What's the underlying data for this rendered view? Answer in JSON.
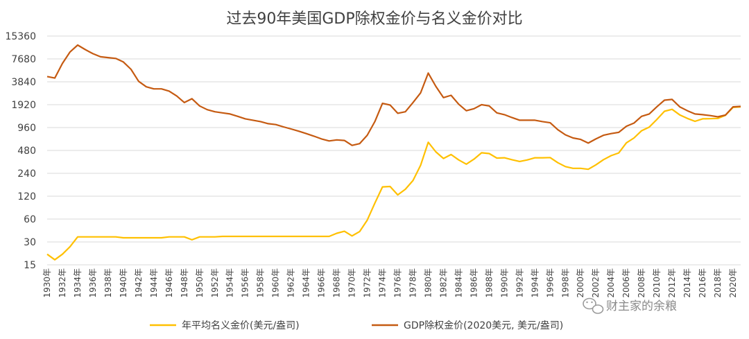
{
  "chart_data": {
    "type": "line",
    "title": "过去90年美国GDP除权金价与名义金价对比",
    "y_scale": "log2",
    "ylim": [
      15,
      15360
    ],
    "y_ticks": [
      "15",
      "30",
      "60",
      "120",
      "240",
      "480",
      "960",
      "1920",
      "3840",
      "7680",
      "15360"
    ],
    "x_ticks": [
      "1930年",
      "1932年",
      "1934年",
      "1936年",
      "1938年",
      "1940年",
      "1942年",
      "1944年",
      "1946年",
      "1948年",
      "1950年",
      "1952年",
      "1954年",
      "1956年",
      "1958年",
      "1960年",
      "1962年",
      "1964年",
      "1966年",
      "1968年",
      "1970年",
      "1972年",
      "1974年",
      "1976年",
      "1978年",
      "1980年",
      "1982年",
      "1984年",
      "1986年",
      "1988年",
      "1990年",
      "1992年",
      "1994年",
      "1996年",
      "1998年",
      "2000年",
      "2002年",
      "2004年",
      "2006年",
      "2008年",
      "2010年",
      "2012年",
      "2014年",
      "2016年",
      "2018年",
      "2020年"
    ],
    "x": [
      1930,
      1931,
      1932,
      1933,
      1934,
      1935,
      1936,
      1937,
      1938,
      1939,
      1940,
      1941,
      1942,
      1943,
      1944,
      1945,
      1946,
      1947,
      1948,
      1949,
      1950,
      1951,
      1952,
      1953,
      1954,
      1955,
      1956,
      1957,
      1958,
      1959,
      1960,
      1961,
      1962,
      1963,
      1964,
      1965,
      1966,
      1967,
      1968,
      1969,
      1970,
      1971,
      1972,
      1973,
      1974,
      1975,
      1976,
      1977,
      1978,
      1979,
      1980,
      1981,
      1982,
      1983,
      1984,
      1985,
      1986,
      1987,
      1988,
      1989,
      1990,
      1991,
      1992,
      1993,
      1994,
      1995,
      1996,
      1997,
      1998,
      1999,
      2000,
      2001,
      2002,
      2003,
      2004,
      2005,
      2006,
      2007,
      2008,
      2009,
      2010,
      2011,
      2012,
      2013,
      2014,
      2015,
      2016,
      2017,
      2018,
      2019,
      2020,
      2021
    ],
    "series": [
      {
        "name": "年平均名义金价(美元/盎司)",
        "color": "#FFC000",
        "values": [
          20.7,
          17.5,
          20.7,
          26,
          35,
          35,
          35,
          35,
          35,
          35,
          34,
          34,
          34,
          34,
          34,
          34,
          35,
          35,
          35,
          32,
          35,
          35,
          35,
          35.5,
          35.5,
          35.5,
          35.5,
          35.5,
          35.5,
          35.5,
          35.5,
          35.5,
          35.5,
          35.5,
          35.5,
          35.5,
          35.5,
          35.5,
          39,
          41.5,
          36,
          41,
          58,
          97,
          159,
          161,
          125,
          148,
          193,
          306,
          615,
          460,
          376,
          424,
          360,
          317,
          368,
          447,
          437,
          381,
          384,
          362,
          344,
          360,
          384,
          384,
          387,
          331,
          294,
          279,
          279,
          271,
          310,
          363,
          410,
          445,
          604,
          700,
          872,
          972,
          1225,
          1572,
          1669,
          1411,
          1266,
          1160,
          1251,
          1257,
          1268,
          1393,
          1770,
          1800
        ]
      },
      {
        "name": "GDP除权金价(2020美元, 美元/盎司)",
        "color": "#C55A11",
        "values": [
          4500,
          4300,
          6700,
          9500,
          11700,
          10200,
          9000,
          8200,
          8000,
          7800,
          7000,
          5600,
          3900,
          3300,
          3100,
          3100,
          2900,
          2500,
          2050,
          2300,
          1850,
          1650,
          1550,
          1500,
          1450,
          1350,
          1250,
          1200,
          1150,
          1080,
          1050,
          980,
          920,
          860,
          800,
          740,
          680,
          640,
          660,
          650,
          560,
          590,
          760,
          1150,
          2000,
          1900,
          1480,
          1550,
          2050,
          2750,
          5000,
          3350,
          2380,
          2550,
          1950,
          1600,
          1700,
          1920,
          1850,
          1500,
          1420,
          1300,
          1200,
          1200,
          1200,
          1150,
          1110,
          900,
          770,
          700,
          670,
          600,
          680,
          760,
          800,
          830,
          1000,
          1100,
          1350,
          1450,
          1800,
          2200,
          2250,
          1800,
          1600,
          1450,
          1420,
          1380,
          1330,
          1400,
          1800,
          1820
        ]
      }
    ],
    "legend_position": "bottom",
    "grid": true
  },
  "watermark": {
    "icon": "wechat-icon",
    "text": "财主家的余粮"
  }
}
